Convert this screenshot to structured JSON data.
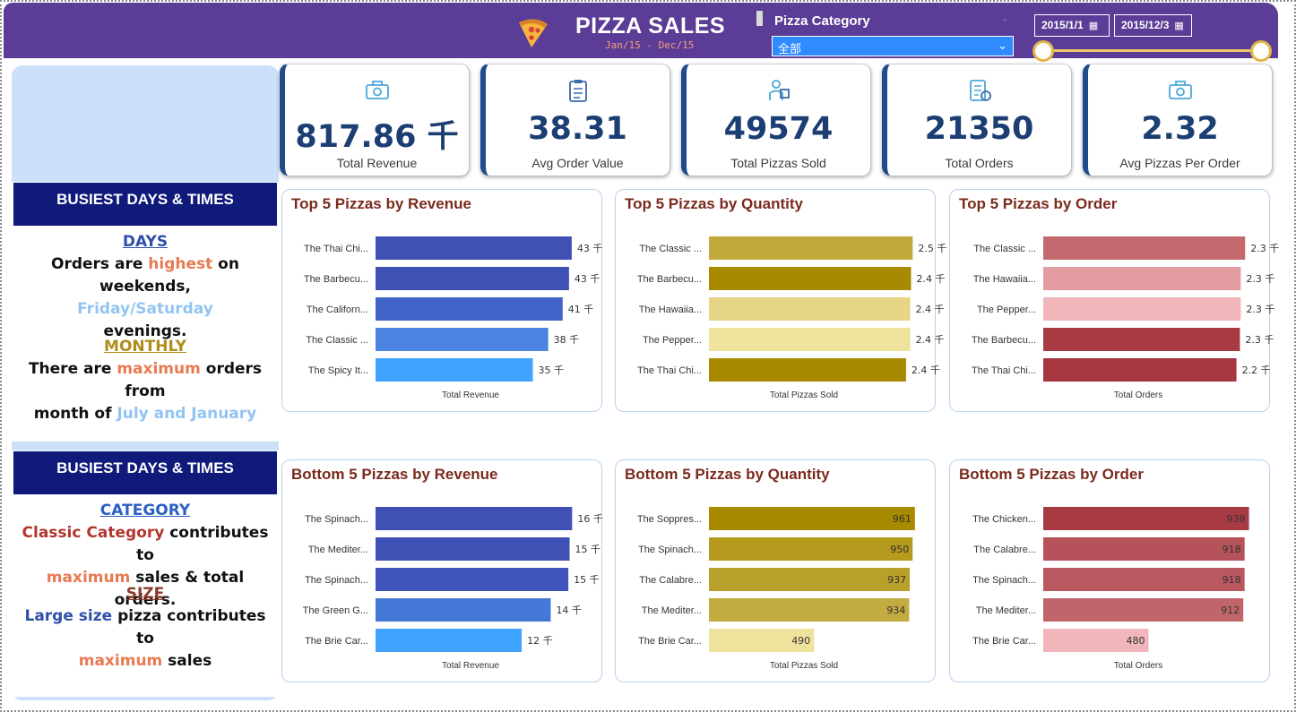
{
  "header": {
    "title": "PIZZA SALES",
    "subtitle": "Jan/15 - Dec/15",
    "slicer_label": "Pizza Category",
    "slicer_value": "全部",
    "date_start": "2015/1/1",
    "date_end": "2015/12/3",
    "date_range_fraction": [
      0,
      1
    ]
  },
  "kpis": [
    {
      "value": "817.86 千",
      "label": "Total Revenue",
      "icon": "money-icon"
    },
    {
      "value": "38.31",
      "label": "Avg Order Value",
      "icon": "clipboard-icon"
    },
    {
      "value": "49574",
      "label": "Total Pizzas Sold",
      "icon": "delivery-icon"
    },
    {
      "value": "21350",
      "label": "Total Orders",
      "icon": "order-list-icon"
    },
    {
      "value": "2.32",
      "label": "Avg Pizzas Per Order",
      "icon": "money-icon"
    }
  ],
  "insights1": {
    "title": "BUSIEST DAYS & TIMES",
    "days_head": "DAYS",
    "days_p1": "Orders are ",
    "days_hl1": "highest",
    "days_p2": " on weekends,",
    "days_hl2": "Friday/Saturday",
    "days_p3": "evenings.",
    "month_head": "MONTHLY",
    "month_p1": "There are ",
    "month_hl1": "maximum",
    "month_p2": " orders from",
    "month_p3": "month of ",
    "month_hl2": "July and January"
  },
  "insights2": {
    "title": "BUSIEST DAYS & TIMES",
    "cat_head": "CATEGORY",
    "cat_hl1": "Classic Category",
    "cat_p1": " contributes to",
    "cat_hl2": "maximum",
    "cat_p2": " sales & total orders.",
    "size_head": "SIZE",
    "size_hl1": "Large size",
    "size_p1": " pizza contributes to",
    "size_hl2": "maximum",
    "size_p2": " sales"
  },
  "chart_data": [
    {
      "type": "bar",
      "orientation": "horizontal",
      "title": "Top 5 Pizzas by Revenue",
      "xlabel": "Total Revenue",
      "categories": [
        "The Thai Chi...",
        "The Barbecu...",
        "The Californ...",
        "The Classic ...",
        "The Spicy It..."
      ],
      "values": [
        43.4,
        42.8,
        41.4,
        38.2,
        34.8
      ],
      "labels": [
        "43 千",
        "43 千",
        "41 千",
        "38 千",
        "35 千"
      ],
      "xlim": [
        0,
        46
      ],
      "label_position": "outside",
      "colors": [
        "#3f51b5",
        "#3f51b5",
        "#4263c8",
        "#4a84e0",
        "#3fa3ff"
      ]
    },
    {
      "type": "bar",
      "orientation": "horizontal",
      "title": "Top 5 Pizzas by Quantity",
      "xlabel": "Total Pizzas Sold",
      "categories": [
        "The Classic ...",
        "The Barbecu...",
        "The Hawaiia...",
        "The Pepper...",
        "The Thai Chi..."
      ],
      "values": [
        2.45,
        2.43,
        2.42,
        2.42,
        2.37
      ],
      "labels": [
        "2.5 千",
        "2.4 千",
        "2.4 千",
        "2.4 千",
        "2.4 千"
      ],
      "xlim": [
        0,
        2.5
      ],
      "label_position": "outside",
      "colors": [
        "#c2a93b",
        "#a88a00",
        "#e6d585",
        "#efe29c",
        "#a88a00"
      ]
    },
    {
      "type": "bar",
      "orientation": "horizontal",
      "title": "Top 5 Pizzas by Order",
      "xlabel": "Total Orders",
      "categories": [
        "The Classic ...",
        "The Hawaiia...",
        "The Pepper...",
        "The Barbecu...",
        "The Thai Chi..."
      ],
      "values": [
        2.33,
        2.28,
        2.28,
        2.27,
        2.23
      ],
      "labels": [
        "2.3 千",
        "2.3 千",
        "2.3 千",
        "2.3 千",
        "2.2 千"
      ],
      "xlim": [
        0,
        2.4
      ],
      "label_position": "outside",
      "colors": [
        "#c46a6e",
        "#e39da0",
        "#f0b6b9",
        "#a83a44",
        "#a63640"
      ]
    },
    {
      "type": "bar",
      "orientation": "horizontal",
      "title": "Bottom 5 Pizzas by Revenue",
      "xlabel": "Total Revenue",
      "categories": [
        "The Spinach...",
        "The Mediter...",
        "The Spinach...",
        "The Green G...",
        "The Brie Car..."
      ],
      "values": [
        15.6,
        15.4,
        15.3,
        13.9,
        11.6
      ],
      "labels": [
        "16 千",
        "15 千",
        "15 千",
        "14 千",
        "12 千"
      ],
      "xlim": [
        0,
        16.5
      ],
      "label_position": "outside",
      "colors": [
        "#3f51b5",
        "#3f51b5",
        "#4055bb",
        "#4378d6",
        "#3fa3ff"
      ]
    },
    {
      "type": "bar",
      "orientation": "horizontal",
      "title": "Bottom 5 Pizzas by Quantity",
      "xlabel": "Total Pizzas Sold",
      "categories": [
        "The Soppres...",
        "The Spinach...",
        "The Calabre...",
        "The Mediter...",
        "The Brie Car..."
      ],
      "values": [
        961,
        950,
        937,
        934,
        490
      ],
      "labels": [
        "961",
        "950",
        "937",
        "934",
        "490"
      ],
      "xlim": [
        0,
        970
      ],
      "label_position": "inside",
      "colors": [
        "#a88a00",
        "#b59a1e",
        "#b9a02b",
        "#c2ab40",
        "#efe29c"
      ]
    },
    {
      "type": "bar",
      "orientation": "horizontal",
      "title": "Bottom 5 Pizzas by Order",
      "xlabel": "Total Orders",
      "categories": [
        "The Chicken...",
        "The Calabre...",
        "The Spinach...",
        "The Mediter...",
        "The Brie Car..."
      ],
      "values": [
        938,
        918,
        918,
        912,
        480
      ],
      "labels": [
        "938",
        "918",
        "918",
        "912",
        "480"
      ],
      "xlim": [
        0,
        948
      ],
      "label_position": "inside",
      "colors": [
        "#a83a44",
        "#b5525a",
        "#b9585f",
        "#c0666b",
        "#f0b6b9"
      ]
    }
  ]
}
